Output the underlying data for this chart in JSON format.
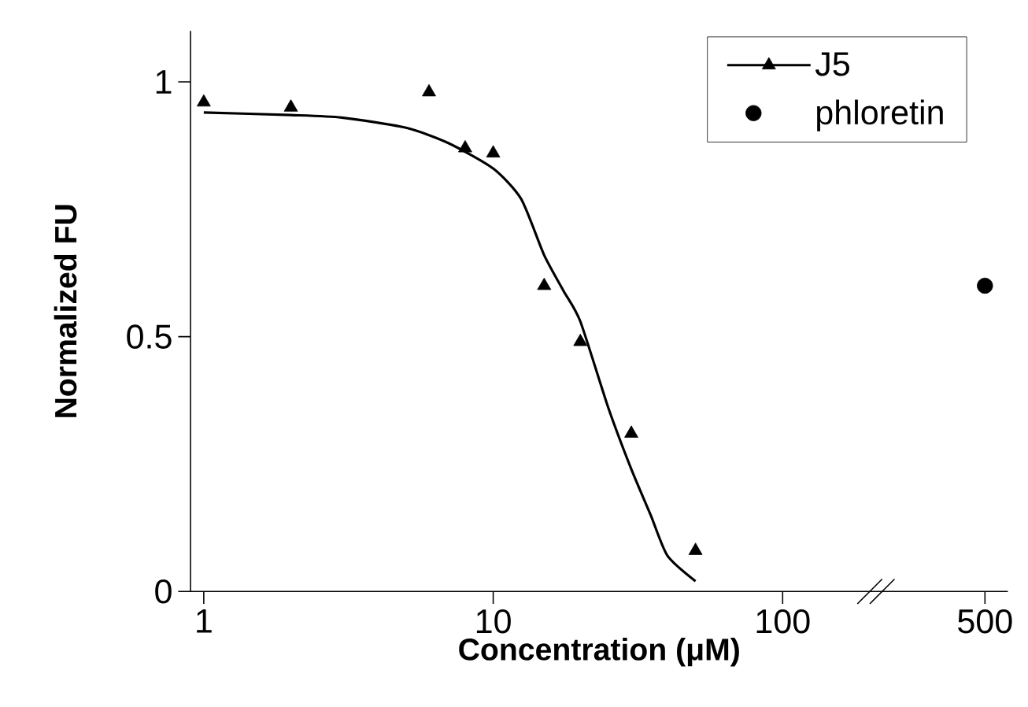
{
  "chart_data": {
    "type": "scatter",
    "xlabel": "Concentration (μM)",
    "ylabel": "Normalized FU",
    "log": "x",
    "xlim": [
      0.9,
      600
    ],
    "xticks": [
      1,
      10,
      100,
      500
    ],
    "ylim": [
      0,
      1.1
    ],
    "yticks": [
      0,
      0.5,
      1
    ],
    "grid": false,
    "legend": "top right",
    "series": [
      {
        "name": "J5",
        "type": "scatter",
        "marker": "triangle",
        "color": "#000000",
        "x": [
          1,
          2,
          6,
          8,
          10,
          15,
          20,
          30,
          50
        ],
        "values": [
          0.96,
          0.95,
          0.98,
          0.87,
          0.86,
          0.6,
          0.49,
          0.31,
          0.08
        ]
      },
      {
        "type": "line",
        "marker": "none",
        "color": "#000000",
        "x": [
          1,
          2,
          3,
          5,
          7,
          10,
          12.5,
          15,
          17.5,
          20,
          25,
          30,
          35,
          40,
          50
        ],
        "values": [
          0.94,
          0.935,
          0.93,
          0.91,
          0.88,
          0.83,
          0.77,
          0.66,
          0.59,
          0.53,
          0.36,
          0.24,
          0.15,
          0.07,
          0.02
        ]
      },
      {
        "name": "phloretin",
        "type": "scatter",
        "marker": "circle",
        "color": "#000000",
        "x": [
          500
        ],
        "values": [
          0.6
        ]
      }
    ]
  }
}
